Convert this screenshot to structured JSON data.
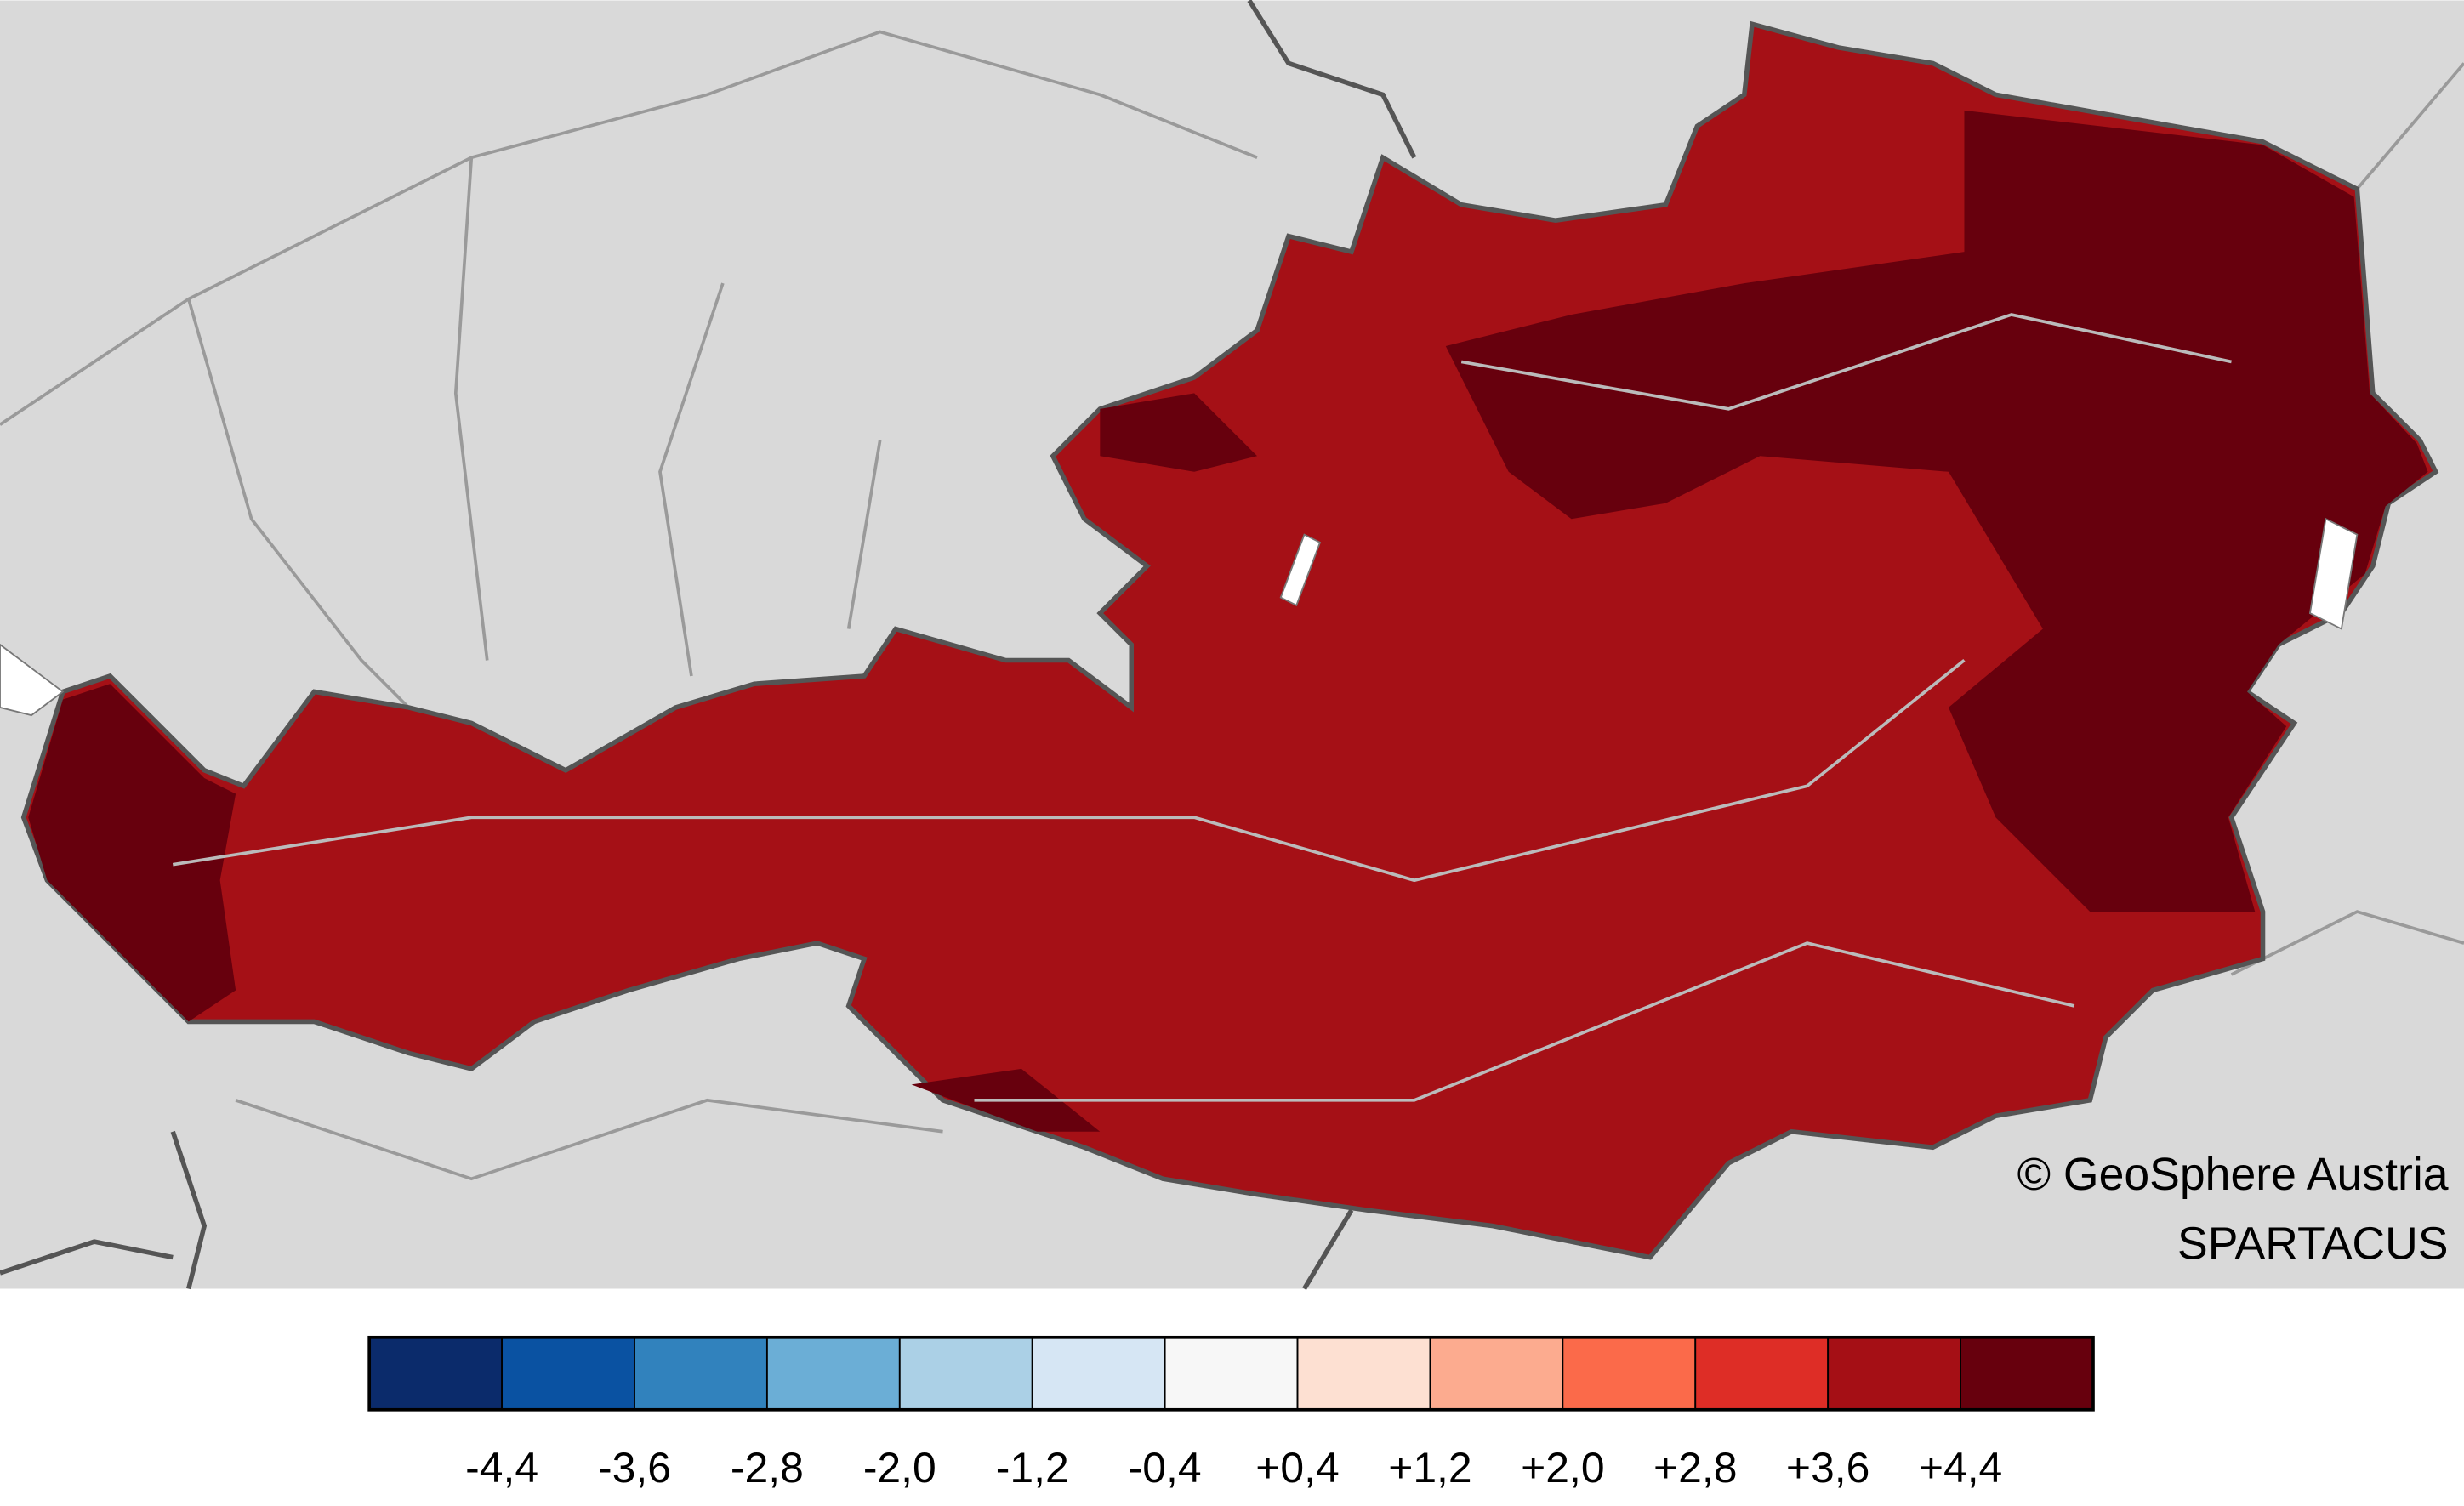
{
  "map": {
    "credit": "© GeoSphere Austria",
    "source": "SPARTACUS",
    "legend": {
      "colors": [
        "#0b2b6b",
        "#0a52a2",
        "#3182bd",
        "#6baed6",
        "#abd0e6",
        "#d6e6f4",
        "#f7f7f7",
        "#fde0d2",
        "#fcab8f",
        "#fb6a4a",
        "#de2d26",
        "#a50f15",
        "#67000d"
      ],
      "labels": [
        "-4,4",
        "-3,6",
        "-2,8",
        "-2,0",
        "-1,2",
        "-0,4",
        "+0,4",
        "+1,2",
        "+2,0",
        "+2,8",
        "+3,6",
        "+4,4"
      ]
    }
  }
}
